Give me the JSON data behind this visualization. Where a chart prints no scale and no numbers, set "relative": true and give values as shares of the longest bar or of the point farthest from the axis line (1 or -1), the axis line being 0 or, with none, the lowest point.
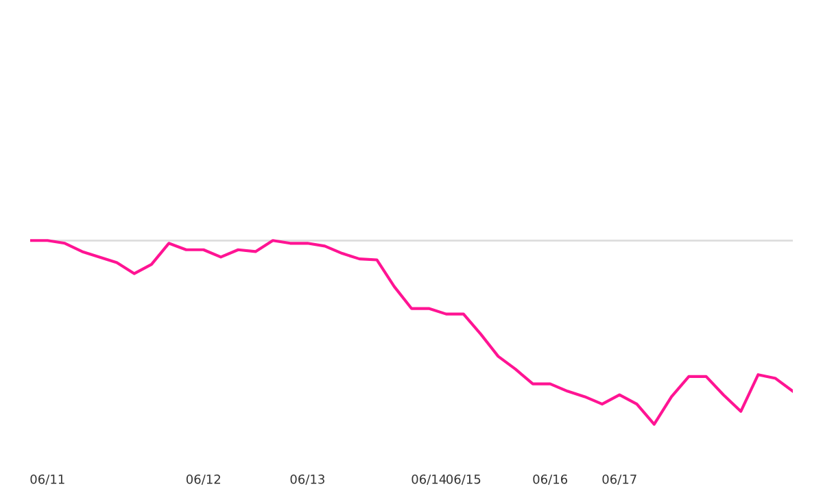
{
  "chart_data": {
    "type": "line",
    "relative": true,
    "categories": [
      null,
      "06/11",
      null,
      null,
      null,
      null,
      null,
      null,
      null,
      null,
      "06/12",
      null,
      null,
      null,
      null,
      null,
      "06/13",
      null,
      null,
      null,
      null,
      null,
      null,
      "06/14",
      null,
      "06/15",
      null,
      null,
      null,
      null,
      "06/16",
      null,
      null,
      null,
      "06/17",
      null,
      null,
      null,
      null,
      null,
      null,
      null,
      null,
      null,
      null
    ],
    "series": [
      {
        "color": "#ff1493",
        "values": [
          0,
          0,
          -0.015,
          -0.06,
          -0.09,
          -0.12,
          -0.18,
          -0.13,
          -0.015,
          -0.05,
          -0.05,
          -0.09,
          -0.05,
          -0.06,
          0,
          -0.015,
          -0.015,
          -0.03,
          -0.07,
          -0.1,
          -0.105,
          -0.25,
          -0.37,
          -0.37,
          -0.4,
          -0.4,
          -0.51,
          -0.63,
          -0.7,
          -0.78,
          -0.78,
          -0.82,
          -0.85,
          -0.89,
          -0.84,
          -0.89,
          -1,
          -0.85,
          -0.74,
          -0.74,
          -0.84,
          -0.93,
          -0.73,
          -0.75,
          -0.82
        ]
      }
    ],
    "grid": false,
    "legend": false,
    "marker": "none",
    "line_style": "solid"
  }
}
